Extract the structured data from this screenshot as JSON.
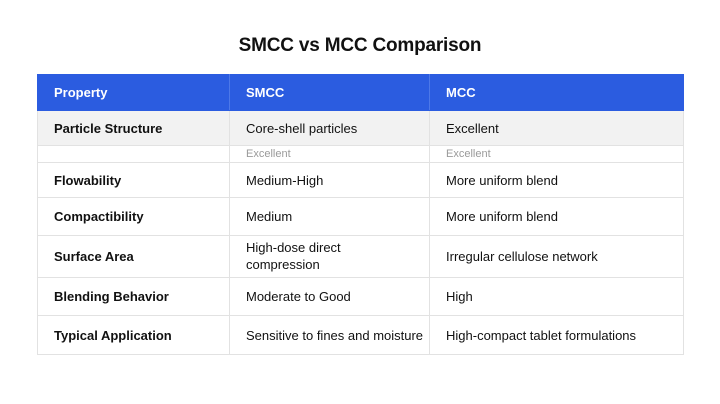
{
  "title": "SMCC vs MCC Comparison",
  "table": {
    "headers": [
      "Property",
      "SMCC",
      "MCC"
    ],
    "rows": {
      "particle": {
        "property": "Particle Structure",
        "smcc": "Core-shell particles",
        "mcc": "Excellent"
      },
      "particle_sub": {
        "property": "",
        "smcc": "Excellent",
        "mcc": "Excellent"
      },
      "flow": {
        "property": "Flowability",
        "smcc": "Medium-High",
        "mcc": "More uniform blend"
      },
      "compact": {
        "property": "Compactibility",
        "smcc": "Medium",
        "mcc": "More uniform blend"
      },
      "surface": {
        "property": "Surface Area",
        "smcc": "High-dose direct compression",
        "mcc": "Irregular cellulose network"
      },
      "blend": {
        "property": "Blending Behavior",
        "smcc": "Moderate to Good",
        "mcc": "High"
      },
      "typical": {
        "property": "Typical Application",
        "smcc": "Sensitive to fines and moisture",
        "mcc": "High-compact tablet formulations"
      }
    }
  },
  "colors": {
    "header_bg": "#2b5ce0",
    "header_text": "#ffffff",
    "shaded_row": "#f2f2f2",
    "border": "#e2e2e2",
    "muted_text": "#9a9a9a"
  }
}
